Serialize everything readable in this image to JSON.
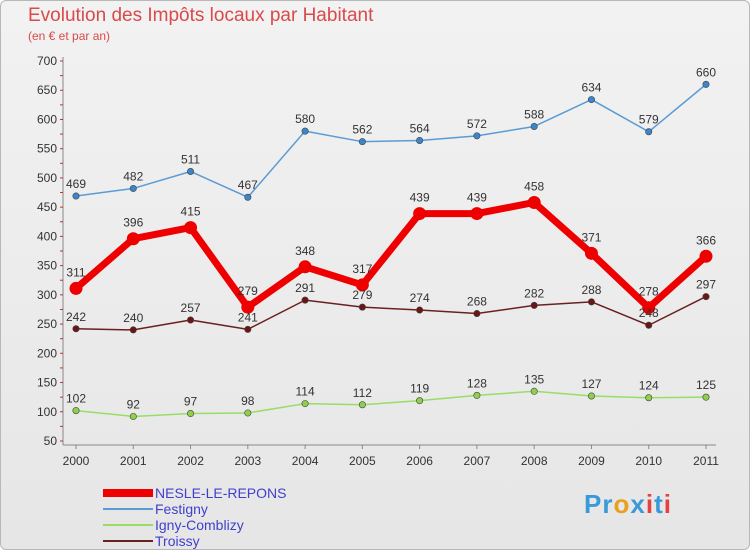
{
  "header": {
    "title": "Evolution des Impôts locaux par Habitant",
    "subtitle": "(en € et par an)"
  },
  "logo": {
    "text": "Proxiti",
    "letters": [
      "P",
      "r",
      "o",
      "x",
      "i",
      "t",
      "i"
    ],
    "colors": [
      "#3a9ad9",
      "#3a9ad9",
      "#e8a020",
      "#3a9ad9",
      "#e84040",
      "#3a9ad9",
      "#e84040"
    ]
  },
  "chart_data": {
    "type": "line",
    "title": "Evolution des Impôts locaux par Habitant",
    "subtitle": "(en € et par an)",
    "xlabel": "",
    "ylabel": "",
    "categories": [
      "2000",
      "2001",
      "2002",
      "2003",
      "2004",
      "2005",
      "2006",
      "2007",
      "2008",
      "2009",
      "2010",
      "2011"
    ],
    "ylim": [
      50,
      700
    ],
    "yticks": [
      50,
      100,
      150,
      200,
      250,
      300,
      350,
      400,
      450,
      500,
      550,
      600,
      650,
      700
    ],
    "grid": false,
    "legend_position": "bottom-left",
    "series": [
      {
        "name": "Festigny",
        "color": "#5b9bd5",
        "values": [
          469,
          482,
          511,
          467,
          580,
          562,
          564,
          572,
          588,
          634,
          579,
          660
        ]
      },
      {
        "name": "Troissy",
        "color": "#6b2020",
        "values": [
          242,
          240,
          257,
          241,
          291,
          279,
          274,
          268,
          282,
          288,
          248,
          297
        ]
      },
      {
        "name": "Igny-Comblizy",
        "color": "#99dd66",
        "values": [
          102,
          92,
          97,
          98,
          114,
          112,
          119,
          128,
          135,
          127,
          124,
          125
        ]
      },
      {
        "name": "NESLE-LE-REPONS",
        "color": "#ee0000",
        "values": [
          311,
          396,
          415,
          279,
          348,
          317,
          439,
          439,
          458,
          371,
          278,
          366
        ]
      }
    ],
    "legend_order": [
      "NESLE-LE-REPONS",
      "Festigny",
      "Igny-Comblizy",
      "Troissy"
    ]
  }
}
